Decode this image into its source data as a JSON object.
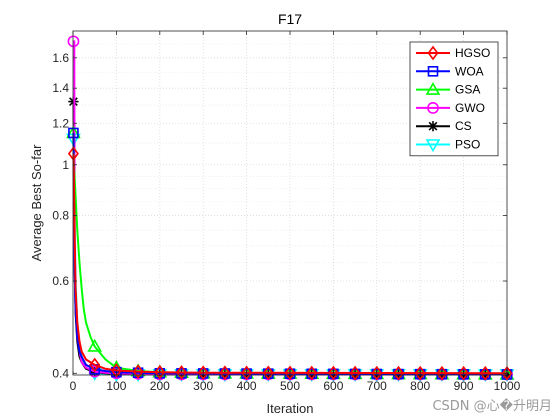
{
  "chart_data": {
    "type": "line",
    "title": "F17",
    "xlabel": "Iteration",
    "ylabel": "Average Best So-far",
    "xlim": [
      0,
      1000
    ],
    "ylim": [
      0.397,
      1.8
    ],
    "x_scale": "linear",
    "y_scale": "log",
    "grid": true,
    "legend_position": "top-right",
    "x_ticks": [
      0,
      100,
      200,
      300,
      400,
      500,
      600,
      700,
      800,
      900,
      1000
    ],
    "y_ticks": [
      0.4,
      0.6,
      0.8,
      1,
      1.2,
      1.4,
      1.6
    ],
    "x_tick_labels": [
      "0",
      "100",
      "200",
      "300",
      "400",
      "500",
      "600",
      "700",
      "800",
      "900",
      "1000"
    ],
    "y_tick_labels": [
      "0.4",
      "0.6",
      "0.8",
      "1",
      "1.2",
      "1.4",
      "1.6"
    ],
    "series": [
      {
        "name": "HGSO",
        "color": "#ff0000",
        "marker": "diamond",
        "x": [
          1,
          2,
          4,
          6,
          10,
          15,
          20,
          30,
          50,
          75,
          100,
          150,
          200,
          300,
          1000
        ],
        "y": [
          1.05,
          0.95,
          0.72,
          0.58,
          0.5,
          0.46,
          0.44,
          0.425,
          0.415,
          0.408,
          0.405,
          0.403,
          0.402,
          0.401,
          0.4
        ]
      },
      {
        "name": "WOA",
        "color": "#0000ff",
        "marker": "square",
        "x": [
          1,
          2,
          4,
          6,
          10,
          15,
          20,
          30,
          50,
          75,
          100,
          150,
          200,
          1000
        ],
        "y": [
          1.15,
          0.9,
          0.62,
          0.53,
          0.47,
          0.44,
          0.43,
          0.415,
          0.407,
          0.404,
          0.402,
          0.401,
          0.4,
          0.398
        ]
      },
      {
        "name": "GSA",
        "color": "#00ff00",
        "marker": "triangle",
        "x": [
          1,
          2,
          5,
          10,
          15,
          20,
          25,
          30,
          40,
          50,
          60,
          75,
          100,
          150,
          200,
          300,
          1000
        ],
        "y": [
          1.15,
          1.0,
          0.9,
          0.75,
          0.65,
          0.58,
          0.53,
          0.5,
          0.47,
          0.45,
          0.44,
          0.425,
          0.41,
          0.404,
          0.402,
          0.4,
          0.398
        ]
      },
      {
        "name": "GWO",
        "color": "#ff00ff",
        "marker": "circle",
        "x": [
          1,
          3,
          4,
          6,
          10,
          15,
          20,
          30,
          50,
          75,
          100,
          200,
          1000
        ],
        "y": [
          1.72,
          1.72,
          0.7,
          0.55,
          0.47,
          0.44,
          0.42,
          0.41,
          0.403,
          0.401,
          0.4,
          0.398,
          0.398
        ]
      },
      {
        "name": "CS",
        "color": "#000000",
        "marker": "asterisk",
        "x": [
          1,
          2,
          4,
          6,
          10,
          15,
          20,
          30,
          50,
          75,
          100,
          200,
          1000
        ],
        "y": [
          1.32,
          1.12,
          0.63,
          0.52,
          0.46,
          0.43,
          0.42,
          0.408,
          0.402,
          0.4,
          0.399,
          0.398,
          0.398
        ]
      },
      {
        "name": "PSO",
        "color": "#00ffff",
        "marker": "triangle-down",
        "x": [
          1,
          3,
          6,
          10,
          15,
          20,
          30,
          50,
          75,
          100,
          150,
          200,
          1000
        ],
        "y": [
          1.12,
          0.85,
          0.6,
          0.5,
          0.45,
          0.43,
          0.41,
          0.4,
          0.399,
          0.398,
          0.398,
          0.398,
          0.398
        ]
      }
    ]
  },
  "watermark": "CSDN @心�升明月"
}
